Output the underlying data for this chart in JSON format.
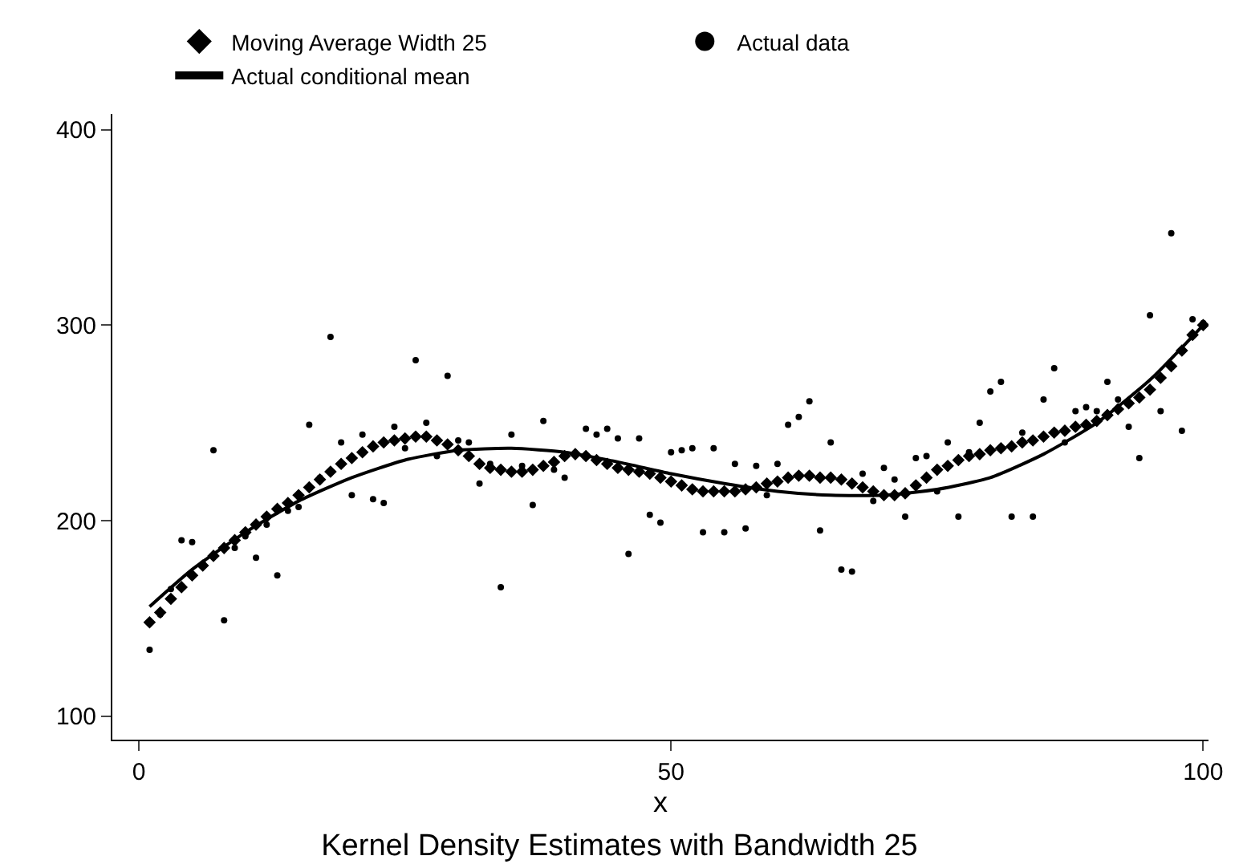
{
  "chart_data": {
    "type": "scatter",
    "title": "Kernel Density Estimates with Bandwidth 25",
    "xlabel": "x",
    "xlim": [
      -2.5,
      100.5
    ],
    "xticks": [
      0,
      50,
      100
    ],
    "ylim": [
      88,
      408
    ],
    "yticks": [
      100,
      200,
      300,
      400
    ],
    "legend": "top",
    "series": [
      {
        "name": "Moving Average Width 25",
        "marker": "diamond",
        "color": "#000000",
        "x": [
          1,
          2,
          3,
          4,
          5,
          6,
          7,
          8,
          9,
          10,
          11,
          12,
          13,
          14,
          15,
          16,
          17,
          18,
          19,
          20,
          21,
          22,
          23,
          24,
          25,
          26,
          27,
          28,
          29,
          30,
          31,
          32,
          33,
          34,
          35,
          36,
          37,
          38,
          39,
          40,
          41,
          42,
          43,
          44,
          45,
          46,
          47,
          48,
          49,
          50,
          51,
          52,
          53,
          54,
          55,
          56,
          57,
          58,
          59,
          60,
          61,
          62,
          63,
          64,
          65,
          66,
          67,
          68,
          69,
          70,
          71,
          72,
          73,
          74,
          75,
          76,
          77,
          78,
          79,
          80,
          81,
          82,
          83,
          84,
          85,
          86,
          87,
          88,
          89,
          90,
          91,
          92,
          93,
          94,
          95,
          96,
          97,
          98,
          99,
          100
        ],
        "values": [
          148,
          153,
          160,
          166,
          172,
          177,
          182,
          186,
          190,
          194,
          198,
          202,
          206,
          209,
          213,
          217,
          221,
          225,
          229,
          232,
          235,
          238,
          240,
          241,
          242,
          243,
          243,
          241,
          239,
          236,
          233,
          229,
          227,
          226,
          225,
          225,
          226,
          228,
          230,
          233,
          234,
          233,
          231,
          229,
          227,
          226,
          225,
          224,
          222,
          220,
          218,
          216,
          215,
          215,
          215,
          215,
          216,
          217,
          219,
          220,
          222,
          223,
          223,
          222,
          222,
          221,
          219,
          217,
          215,
          213,
          213,
          214,
          218,
          222,
          226,
          228,
          231,
          233,
          234,
          236,
          237,
          238,
          240,
          241,
          243,
          245,
          246,
          248,
          249,
          251,
          254,
          257,
          260,
          263,
          267,
          273,
          279,
          287,
          295,
          300
        ]
      },
      {
        "name": "Actual data",
        "marker": "circle",
        "color": "#000000",
        "x": [
          1,
          2,
          3,
          4,
          5,
          6,
          7,
          8,
          9,
          10,
          11,
          12,
          13,
          14,
          15,
          16,
          17,
          18,
          19,
          20,
          21,
          22,
          23,
          24,
          25,
          26,
          27,
          28,
          29,
          30,
          31,
          32,
          33,
          34,
          35,
          36,
          37,
          38,
          39,
          40,
          41,
          42,
          43,
          44,
          45,
          46,
          47,
          48,
          49,
          50,
          51,
          52,
          53,
          54,
          55,
          56,
          57,
          58,
          59,
          60,
          61,
          62,
          63,
          64,
          65,
          66,
          67,
          68,
          69,
          70,
          71,
          72,
          73,
          74,
          75,
          76,
          77,
          78,
          79,
          80,
          81,
          82,
          83,
          84,
          85,
          86,
          87,
          88,
          89,
          90,
          91,
          92,
          93,
          94,
          95,
          96,
          97,
          98,
          99,
          100
        ],
        "values": [
          134,
          152,
          165,
          190,
          189,
          178,
          236,
          149,
          186,
          192,
          181,
          198,
          172,
          205,
          207,
          249,
          222,
          294,
          240,
          213,
          244,
          211,
          209,
          248,
          237,
          282,
          250,
          233,
          274,
          241,
          240,
          219,
          229,
          166,
          244,
          228,
          208,
          251,
          226,
          222,
          null,
          247,
          244,
          247,
          242,
          183,
          242,
          203,
          199,
          235,
          236,
          237,
          194,
          237,
          194,
          229,
          196,
          228,
          213,
          229,
          249,
          253,
          261,
          195,
          240,
          175,
          174,
          224,
          210,
          227,
          221,
          202,
          232,
          233,
          215,
          240,
          202,
          235,
          250,
          266,
          271,
          202,
          245,
          202,
          262,
          278,
          240,
          256,
          258,
          256,
          271,
          262,
          248,
          232,
          305,
          256,
          347,
          246,
          303,
          301
        ]
      },
      {
        "name": "Actual conditional mean",
        "type": "line",
        "marker": "none",
        "line_style": "solid",
        "color": "#000000",
        "x": [
          1,
          5,
          10,
          15,
          20,
          25,
          30,
          35,
          40,
          45,
          50,
          55,
          60,
          65,
          70,
          75,
          80,
          85,
          90,
          95,
          100
        ],
        "values": [
          156,
          175,
          194,
          210,
          222,
          231,
          236,
          237,
          235,
          230,
          224,
          219,
          215,
          213,
          213,
          216,
          222,
          234,
          250,
          272,
          300
        ]
      }
    ]
  }
}
